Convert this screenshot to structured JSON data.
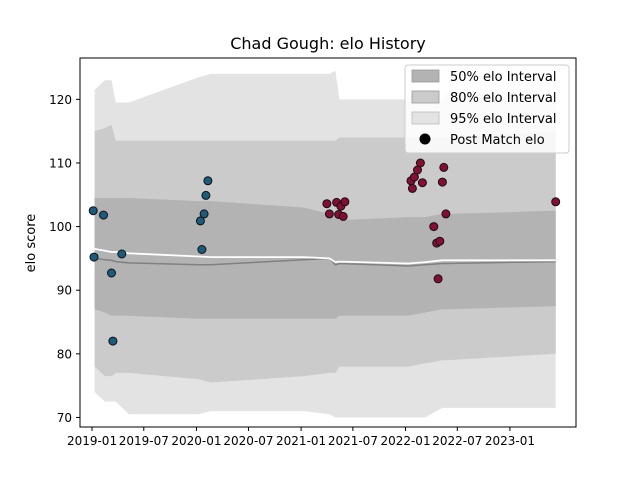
{
  "chart_data": {
    "type": "scatter",
    "title": "Chad Gough: elo History",
    "xlabel": "",
    "ylabel": "elo score",
    "xlim": [
      "2018-11-20",
      "2023-08-20"
    ],
    "ylim": [
      68.5,
      126.5
    ],
    "x_ticks": [
      "2019-01",
      "2019-07",
      "2020-01",
      "2020-07",
      "2021-01",
      "2021-07",
      "2022-01",
      "2022-07",
      "2023-01"
    ],
    "y_ticks": [
      70,
      80,
      90,
      100,
      110,
      120
    ],
    "grid": false,
    "legend": {
      "position": "top-right",
      "entries": [
        "50% elo Interval",
        "80% elo Interval",
        "95% elo Interval",
        "Post Match elo"
      ]
    },
    "colors": {
      "band95": "#e3e3e3",
      "band80": "#cbcbcb",
      "band50": "#b3b3b3",
      "mean_line": "#ffffff",
      "median_line": "#808080",
      "points_early": "#1b5c7e",
      "points_late": "#870d33",
      "point_edge": "#111111"
    },
    "intervals": {
      "dates": [
        "2019-01-10",
        "2019-02-15",
        "2019-03-10",
        "2019-03-25",
        "2019-05-10",
        "2020-01-10",
        "2020-02-20",
        "2021-01-10",
        "2021-04-10",
        "2021-05-01",
        "2021-05-15",
        "2022-01-10",
        "2022-03-10",
        "2022-05-10",
        "2022-05-25",
        "2023-06-10"
      ],
      "p95_upper": [
        121.5,
        123.0,
        123.0,
        119.5,
        119.5,
        123.5,
        124.0,
        124.0,
        124.0,
        124.5,
        120.0,
        120.0,
        120.0,
        120.0,
        121.0,
        121.0
      ],
      "p95_lower": [
        74.0,
        72.5,
        72.5,
        72.5,
        70.5,
        70.5,
        71.0,
        71.0,
        70.5,
        70.0,
        70.0,
        70.0,
        70.0,
        71.5,
        71.5,
        71.5
      ],
      "p80_upper": [
        115.0,
        115.5,
        116.0,
        113.5,
        113.5,
        113.5,
        113.5,
        113.5,
        113.5,
        113.5,
        114.0,
        114.0,
        114.0,
        114.0,
        114.0,
        115.0
      ],
      "p80_lower": [
        78.0,
        76.5,
        76.5,
        77.0,
        77.0,
        76.0,
        75.5,
        76.5,
        77.0,
        77.0,
        78.0,
        78.0,
        78.5,
        79.0,
        79.0,
        80.0
      ],
      "p50_upper": [
        104.5,
        104.5,
        104.5,
        104.5,
        104.5,
        104.0,
        104.0,
        103.0,
        102.0,
        101.5,
        101.0,
        101.5,
        101.5,
        102.0,
        102.0,
        102.5
      ],
      "p50_lower": [
        87.0,
        86.5,
        86.0,
        86.0,
        86.0,
        85.5,
        85.5,
        85.5,
        85.5,
        85.5,
        86.0,
        86.0,
        86.5,
        87.0,
        87.0,
        87.5
      ],
      "mean": [
        96.5,
        96.2,
        96.0,
        96.0,
        95.8,
        95.3,
        95.2,
        95.2,
        95.0,
        94.4,
        94.5,
        94.2,
        94.4,
        94.7,
        94.7,
        94.7
      ],
      "median": [
        95.0,
        94.8,
        94.7,
        94.5,
        94.3,
        94.0,
        94.0,
        94.8,
        95.0,
        94.0,
        94.2,
        93.8,
        94.0,
        94.2,
        94.2,
        94.5
      ]
    },
    "series": [
      {
        "group": "early",
        "points": [
          {
            "x": "2019-01-05",
            "y": 102.5
          },
          {
            "x": "2019-01-08",
            "y": 95.2
          },
          {
            "x": "2019-02-10",
            "y": 101.8
          },
          {
            "x": "2019-03-10",
            "y": 92.7
          },
          {
            "x": "2019-03-15",
            "y": 82.0
          },
          {
            "x": "2019-04-15",
            "y": 95.7
          },
          {
            "x": "2020-01-15",
            "y": 100.9
          },
          {
            "x": "2020-01-20",
            "y": 96.4
          },
          {
            "x": "2020-01-28",
            "y": 102.0
          },
          {
            "x": "2020-02-03",
            "y": 104.9
          },
          {
            "x": "2020-02-10",
            "y": 107.2
          }
        ]
      },
      {
        "group": "late",
        "points": [
          {
            "x": "2021-04-01",
            "y": 103.6
          },
          {
            "x": "2021-04-10",
            "y": 102.0
          },
          {
            "x": "2021-05-05",
            "y": 103.8
          },
          {
            "x": "2021-05-12",
            "y": 101.9
          },
          {
            "x": "2021-05-20",
            "y": 103.2
          },
          {
            "x": "2021-05-28",
            "y": 101.6
          },
          {
            "x": "2021-06-03",
            "y": 103.9
          },
          {
            "x": "2022-01-20",
            "y": 107.2
          },
          {
            "x": "2022-01-25",
            "y": 106.0
          },
          {
            "x": "2022-02-01",
            "y": 107.8
          },
          {
            "x": "2022-02-12",
            "y": 108.9
          },
          {
            "x": "2022-02-22",
            "y": 110.0
          },
          {
            "x": "2022-03-01",
            "y": 106.9
          },
          {
            "x": "2022-04-10",
            "y": 100.0
          },
          {
            "x": "2022-04-20",
            "y": 97.4
          },
          {
            "x": "2022-04-25",
            "y": 91.8
          },
          {
            "x": "2022-05-01",
            "y": 97.7
          },
          {
            "x": "2022-05-10",
            "y": 107.0
          },
          {
            "x": "2022-05-15",
            "y": 109.3
          },
          {
            "x": "2022-05-22",
            "y": 102.0
          },
          {
            "x": "2023-06-10",
            "y": 103.9
          }
        ]
      }
    ]
  }
}
